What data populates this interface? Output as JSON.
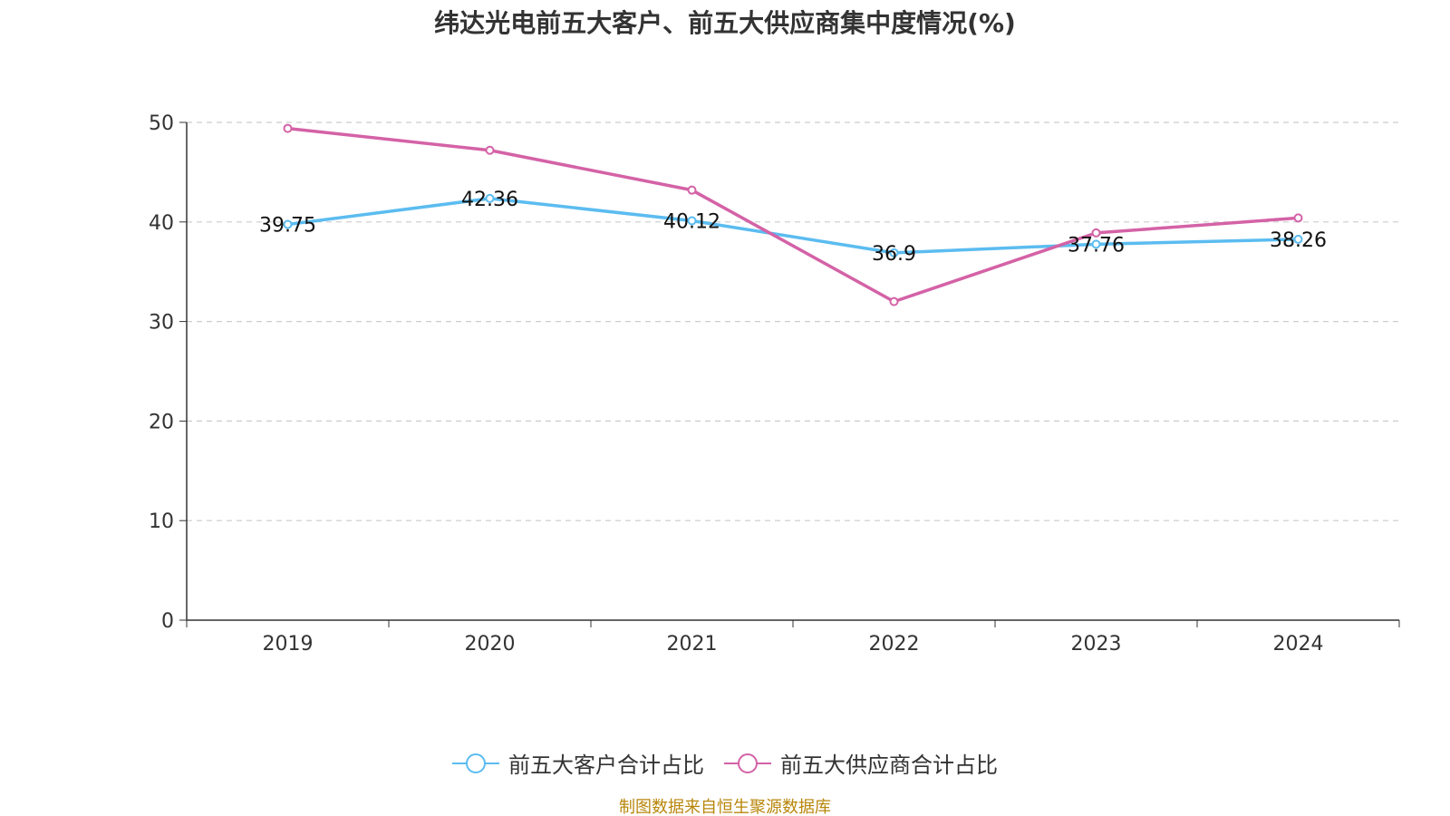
{
  "chart_data": {
    "type": "line",
    "title": "纬达光电前五大客户、前五大供应商集中度情况(%)",
    "categories": [
      "2019",
      "2020",
      "2021",
      "2022",
      "2023",
      "2024"
    ],
    "ylim": [
      0,
      50
    ],
    "yticks": [
      "0",
      "10",
      "20",
      "30",
      "40",
      "50"
    ],
    "grid": true,
    "legend_position": "bottom",
    "series": [
      {
        "name": "前五大客户合计占比",
        "color": "#5bbcf0",
        "values": [
          39.75,
          42.36,
          40.12,
          36.9,
          37.76,
          38.26
        ],
        "labels": [
          "39.75",
          "42.36",
          "40.12",
          "36.9",
          "37.76",
          "38.26"
        ]
      },
      {
        "name": "前五大供应商合计占比",
        "color": "#d462a6",
        "values": [
          49.4,
          47.2,
          43.2,
          32.0,
          38.9,
          40.4
        ]
      }
    ]
  },
  "legend": {
    "items": [
      "前五大客户合计占比",
      "前五大供应商合计占比"
    ]
  },
  "source": "制图数据来自恒生聚源数据库"
}
